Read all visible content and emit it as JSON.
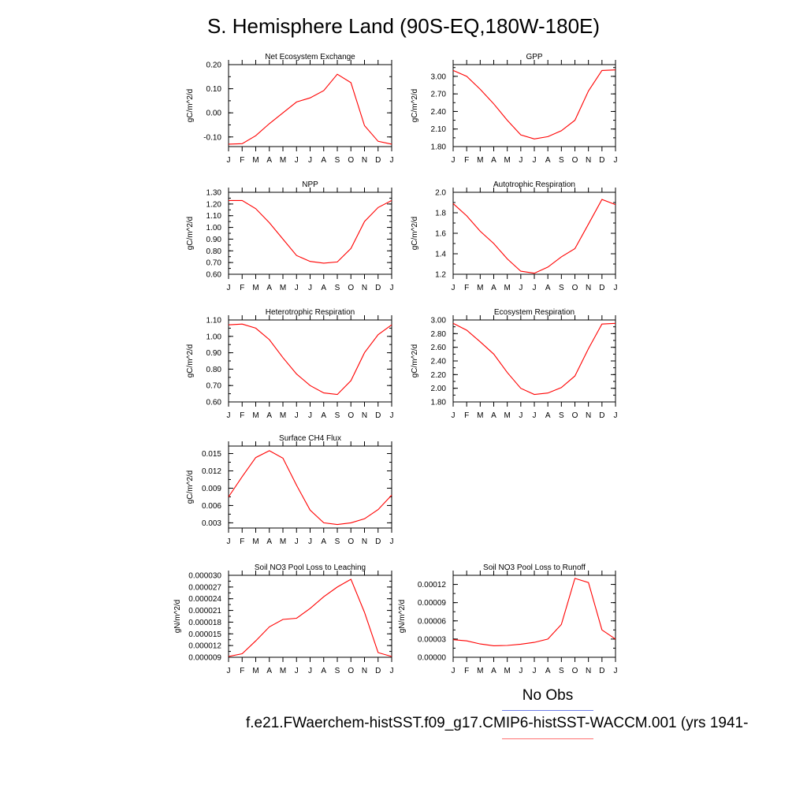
{
  "title": "S. Hemisphere Land (90S-EQ,180W-180E)",
  "legend": {
    "obs_label": "No Obs",
    "model_label": "f.e21.FWaerchem-histSST.f09_g17.CMIP6-histSST-WACCM.001 (yrs 1941-",
    "obs_color": "#6f7fe8",
    "model_color": "#ff0000"
  },
  "chart_data": [
    {
      "type": "line",
      "title": "Net Ecosystem Exchange",
      "ylabel": "gC/m^2/d",
      "categories": [
        "J",
        "F",
        "M",
        "A",
        "M",
        "J",
        "J",
        "A",
        "S",
        "O",
        "N",
        "D",
        "J"
      ],
      "ylim": [
        -0.14,
        0.2
      ],
      "yticks": [
        0.2,
        0.1,
        0.0,
        -0.1
      ],
      "ytick_labels": [
        "0.20",
        "0.10",
        "0.00",
        "-0.10"
      ],
      "series": [
        {
          "values": [
            -0.13,
            -0.128,
            -0.095,
            -0.045,
            0.0,
            0.045,
            0.062,
            0.092,
            0.16,
            0.125,
            -0.053,
            -0.118,
            -0.13
          ]
        }
      ]
    },
    {
      "type": "line",
      "title": "GPP",
      "ylabel": "gC/m^2/d",
      "categories": [
        "J",
        "F",
        "M",
        "A",
        "M",
        "J",
        "J",
        "A",
        "S",
        "O",
        "N",
        "D",
        "J"
      ],
      "ylim": [
        1.8,
        3.2
      ],
      "yticks": [
        3.0,
        2.7,
        2.4,
        2.1,
        1.8
      ],
      "ytick_labels": [
        "3.00",
        "2.70",
        "2.40",
        "2.10",
        "1.80"
      ],
      "series": [
        {
          "values": [
            3.1,
            3.0,
            2.78,
            2.53,
            2.25,
            2.0,
            1.93,
            1.97,
            2.07,
            2.25,
            2.75,
            3.1,
            3.11
          ]
        }
      ]
    },
    {
      "type": "line",
      "title": "NPP",
      "ylabel": "gC/m^2/d",
      "categories": [
        "J",
        "F",
        "M",
        "A",
        "M",
        "J",
        "J",
        "A",
        "S",
        "O",
        "N",
        "D",
        "J"
      ],
      "ylim": [
        0.6,
        1.3
      ],
      "yticks": [
        1.3,
        1.2,
        1.1,
        1.0,
        0.9,
        0.8,
        0.7,
        0.6
      ],
      "ytick_labels": [
        "1.30",
        "1.20",
        "1.10",
        "1.00",
        "0.90",
        "0.80",
        "0.70",
        "0.60"
      ],
      "series": [
        {
          "values": [
            1.23,
            1.23,
            1.16,
            1.04,
            0.9,
            0.76,
            0.71,
            0.695,
            0.705,
            0.82,
            1.05,
            1.17,
            1.23
          ]
        }
      ]
    },
    {
      "type": "line",
      "title": "Autotrophic Respiration",
      "ylabel": "gC/m^2/d",
      "categories": [
        "J",
        "F",
        "M",
        "A",
        "M",
        "J",
        "J",
        "A",
        "S",
        "O",
        "N",
        "D",
        "J"
      ],
      "ylim": [
        1.2,
        2.0
      ],
      "yticks": [
        2.0,
        1.8,
        1.6,
        1.4,
        1.2
      ],
      "ytick_labels": [
        "2.0",
        "1.8",
        "1.6",
        "1.4",
        "1.2"
      ],
      "series": [
        {
          "values": [
            1.89,
            1.77,
            1.62,
            1.5,
            1.35,
            1.23,
            1.21,
            1.27,
            1.37,
            1.45,
            1.69,
            1.93,
            1.88
          ]
        }
      ]
    },
    {
      "type": "line",
      "title": "Heterotrophic Respiration",
      "ylabel": "gC/m^2/d",
      "categories": [
        "J",
        "F",
        "M",
        "A",
        "M",
        "J",
        "J",
        "A",
        "S",
        "O",
        "N",
        "D",
        "J"
      ],
      "ylim": [
        0.6,
        1.1
      ],
      "yticks": [
        1.1,
        1.0,
        0.9,
        0.8,
        0.7,
        0.6
      ],
      "ytick_labels": [
        "1.10",
        "1.00",
        "0.90",
        "0.80",
        "0.70",
        "0.60"
      ],
      "series": [
        {
          "values": [
            1.07,
            1.075,
            1.05,
            0.98,
            0.87,
            0.77,
            0.7,
            0.655,
            0.645,
            0.73,
            0.9,
            1.01,
            1.07
          ]
        }
      ]
    },
    {
      "type": "line",
      "title": "Ecosystem Respiration",
      "ylabel": "gC/m^2/d",
      "categories": [
        "J",
        "F",
        "M",
        "A",
        "M",
        "J",
        "J",
        "A",
        "S",
        "O",
        "N",
        "D",
        "J"
      ],
      "ylim": [
        1.8,
        3.0
      ],
      "yticks": [
        3.0,
        2.8,
        2.6,
        2.4,
        2.2,
        2.0,
        1.8
      ],
      "ytick_labels": [
        "3.00",
        "2.80",
        "2.60",
        "2.40",
        "2.20",
        "2.00",
        "1.80"
      ],
      "series": [
        {
          "values": [
            2.95,
            2.85,
            2.68,
            2.5,
            2.23,
            2.0,
            1.91,
            1.93,
            2.01,
            2.18,
            2.58,
            2.94,
            2.95
          ]
        }
      ]
    },
    {
      "type": "line",
      "title": "Surface CH4 Flux",
      "ylabel": "gC/m^2/d",
      "categories": [
        "J",
        "F",
        "M",
        "A",
        "M",
        "J",
        "J",
        "A",
        "S",
        "O",
        "N",
        "D",
        "J"
      ],
      "ylim": [
        0.0021,
        0.0163
      ],
      "yticks": [
        0.015,
        0.012,
        0.009,
        0.006,
        0.003
      ],
      "ytick_labels": [
        "0.015",
        "0.012",
        "0.009",
        "0.006",
        "0.003"
      ],
      "series": [
        {
          "values": [
            0.0075,
            0.011,
            0.0143,
            0.0155,
            0.0142,
            0.0095,
            0.0052,
            0.003,
            0.0027,
            0.003,
            0.0037,
            0.0053,
            0.0078
          ]
        }
      ]
    },
    {
      "type": "line",
      "title": "Soil NO3 Pool Loss to Leaching",
      "ylabel": "gN/m^2/d",
      "categories": [
        "J",
        "F",
        "M",
        "A",
        "M",
        "J",
        "J",
        "A",
        "S",
        "O",
        "N",
        "D",
        "J"
      ],
      "ylim": [
        9e-06,
        3e-05
      ],
      "yticks": [
        3e-05,
        2.7e-05,
        2.4e-05,
        2.1e-05,
        1.8e-05,
        1.5e-05,
        1.2e-05,
        9e-06
      ],
      "ytick_labels": [
        "0.000030",
        "0.000027",
        "0.000024",
        "0.000021",
        "0.000018",
        "0.000015",
        "0.000012",
        "0.000009"
      ],
      "series": [
        {
          "values": [
            9.2e-06,
            9.9e-06,
            1.32e-05,
            1.68e-05,
            1.87e-05,
            1.9e-05,
            2.15e-05,
            2.45e-05,
            2.7e-05,
            2.9e-05,
            2.05e-05,
            1.02e-05,
            9.2e-06
          ]
        }
      ]
    },
    {
      "type": "line",
      "title": "Soil NO3 Pool Loss to Runoff",
      "ylabel": "gN/m^2/d",
      "categories": [
        "J",
        "F",
        "M",
        "A",
        "M",
        "J",
        "J",
        "A",
        "S",
        "O",
        "N",
        "D",
        "J"
      ],
      "ylim": [
        0.0,
        0.000135
      ],
      "yticks": [
        0.00012,
        9e-05,
        6e-05,
        3e-05,
        0.0
      ],
      "ytick_labels": [
        "0.00012",
        "0.00009",
        "0.00006",
        "0.00003",
        "0.00000"
      ],
      "series": [
        {
          "values": [
            2.9e-05,
            2.7e-05,
            2.2e-05,
            1.9e-05,
            1.95e-05,
            2.15e-05,
            2.45e-05,
            3e-05,
            5.4e-05,
            0.00013,
            0.000123,
            4.5e-05,
            3e-05
          ]
        }
      ]
    }
  ]
}
